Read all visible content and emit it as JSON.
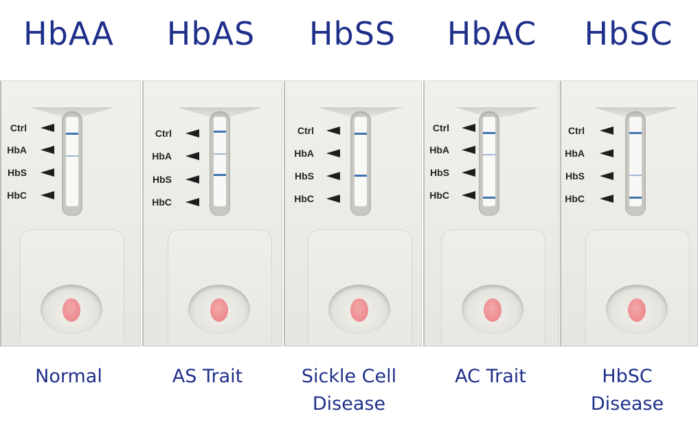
{
  "panels": [
    {
      "genotype": "HbAA",
      "caption": "Normal"
    },
    {
      "genotype": "HbAS",
      "caption": "AS Trait"
    },
    {
      "genotype": "HbSS",
      "caption": "Sickle Cell Disease"
    },
    {
      "genotype": "HbAC",
      "caption": "AC Trait"
    },
    {
      "genotype": "HbSC",
      "caption": "HbSC Disease"
    }
  ],
  "card_labels": {
    "ctrl": "Ctrl",
    "hba": "HbA",
    "hbs": "HbS",
    "hbc": "HbC"
  },
  "colors": {
    "title_text": "#1e2f8a",
    "band": "#3e74b0",
    "sample_spot": "#e87e86"
  }
}
